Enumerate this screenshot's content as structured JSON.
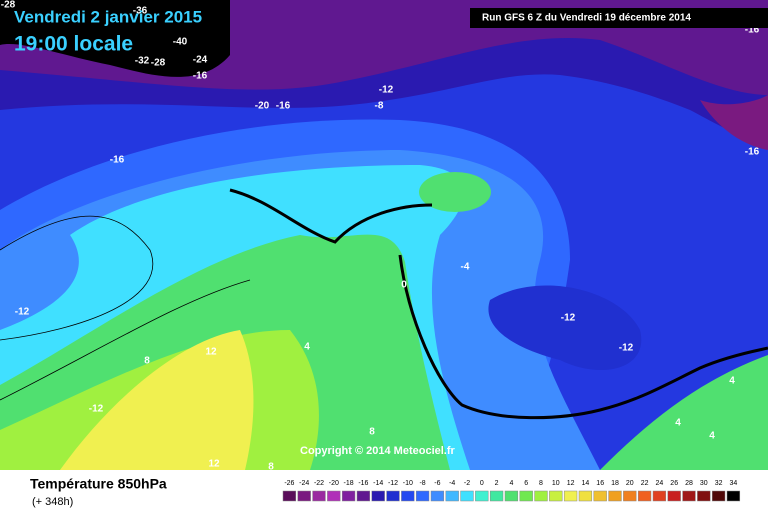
{
  "header": {
    "date": "Vendredi 2 janvier 2015",
    "time": "19:00 locale",
    "run": "Run GFS 6 Z du Vendredi 19 décembre 2014"
  },
  "map": {
    "labels": [
      "-28",
      "-36",
      "-40",
      "-32",
      "-28",
      "-24",
      "-16",
      "-20",
      "-16",
      "-12",
      "-8",
      "-16",
      "-16",
      "-16",
      "-12",
      "-4",
      "0",
      "-12",
      "-12",
      "8",
      "12",
      "4",
      "-12",
      "8",
      "12",
      "8",
      "4",
      "4",
      "4"
    ],
    "copyright": "Copyright © 2014 Meteociel.fr"
  },
  "footer": {
    "field": "Température 850hPa",
    "lead": "(+ 348h)"
  },
  "legend": {
    "ticks": [
      -26,
      -24,
      -22,
      -20,
      -18,
      -16,
      -14,
      -12,
      -10,
      -8,
      -6,
      -4,
      -2,
      0,
      2,
      4,
      6,
      8,
      10,
      12,
      14,
      16,
      18,
      20,
      22,
      24,
      26,
      28,
      30,
      32,
      34
    ],
    "colors": [
      "#5a0d5a",
      "#7a1a80",
      "#9a2aa0",
      "#b030b8",
      "#8020a0",
      "#601890",
      "#2a1ab0",
      "#2030d0",
      "#2448f0",
      "#2f68ff",
      "#3f8cff",
      "#40b8ff",
      "#40e0ff",
      "#40f0d0",
      "#40e8a0",
      "#50e070",
      "#70e850",
      "#a0f040",
      "#c8f040",
      "#f0f050",
      "#f0e040",
      "#f0c030",
      "#f0a020",
      "#f08020",
      "#f06020",
      "#e04020",
      "#c82020",
      "#a01818",
      "#801010",
      "#500808",
      "#000000"
    ]
  }
}
